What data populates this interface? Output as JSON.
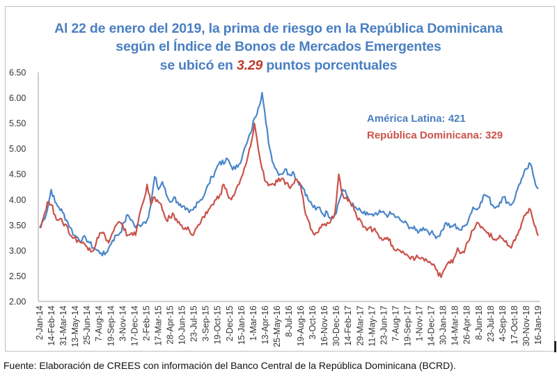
{
  "title": {
    "line1": "Al 22 de enero del 2019, la prima de riesgo en la República Dominicana",
    "line2": "según el Índice de Bonos de Mercados Emergentes",
    "line3_pre": "se ubicó en ",
    "line3_value": "3.29",
    "line3_post": " puntos porcentuales"
  },
  "legend": {
    "america_latina": "América Latina: 421",
    "republica_dominicana": "República Dominicana: 329"
  },
  "source": "Fuente: Elaboración de CREES con información del Banco Central de la República Dominicana (BCRD).",
  "colors": {
    "america_latina": "#4a86c8",
    "republica_dominicana": "#c9524a",
    "title": "#4a7fc1",
    "highlight": "#c0392b"
  },
  "chart_data": {
    "type": "line",
    "title": "Al 22 de enero del 2019, la prima de riesgo en la República Dominicana según el Índice de Bonos de Mercados Emergentes se ubicó en 3.29 puntos porcentuales",
    "xlabel": "",
    "ylabel": "",
    "ylim": [
      2.0,
      6.5
    ],
    "yticks": [
      "2.00",
      "2.50",
      "3.00",
      "3.50",
      "4.00",
      "4.50",
      "5.00",
      "5.50",
      "6.00",
      "6.50"
    ],
    "grid": false,
    "legend_position": "top-right (inline text labels)",
    "categories": [
      "2-Jan-14",
      "14-Feb-14",
      "31-Mar-14",
      "13-May-14",
      "25-Jun-14",
      "7-Aug-14",
      "19-Sep-14",
      "3-Nov-14",
      "17-Dec-14",
      "2-Feb-15",
      "17-Mar-15",
      "28-Apr-15",
      "10-Jun-15",
      "23-Jul-15",
      "3-Sep-15",
      "19-Oct-15",
      "2-Dec-15",
      "15-Jan-16",
      "1-Mar-16",
      "13-Apr-16",
      "25-May-16",
      "8-Jul-16",
      "19-Aug-16",
      "3-Oct-16",
      "16-Nov-16",
      "30-Dec-16",
      "14-Feb-17",
      "29-Mar-17",
      "11-May-17",
      "23-Jun-17",
      "7-Aug-17",
      "19-Sep-17",
      "1-Nov-17",
      "14-Dec-17",
      "30-Jan-18",
      "14-Mar-18",
      "26-Apr-18",
      "8-Jun-18",
      "23-Jul-18",
      "4-Sep-18",
      "17-Oct-18",
      "30-Nov-18",
      "16-Jan-19"
    ],
    "points_per_category": 3,
    "series": [
      {
        "name": "América Latina",
        "end_label": "421",
        "values": [
          3.45,
          3.6,
          3.8,
          4.2,
          3.95,
          3.85,
          3.75,
          3.6,
          3.45,
          3.3,
          3.25,
          3.2,
          3.25,
          3.15,
          3.05,
          3.0,
          2.95,
          2.92,
          3.05,
          3.2,
          3.3,
          3.35,
          3.55,
          3.7,
          3.6,
          3.45,
          3.5,
          3.55,
          3.6,
          3.9,
          4.45,
          4.2,
          4.35,
          4.1,
          3.95,
          4.05,
          3.95,
          3.85,
          3.8,
          3.75,
          3.8,
          3.95,
          4.0,
          4.1,
          4.3,
          4.45,
          4.6,
          4.75,
          4.7,
          4.8,
          4.65,
          4.6,
          4.7,
          4.9,
          5.1,
          5.3,
          5.6,
          5.8,
          6.1,
          5.5,
          5.0,
          4.7,
          4.55,
          4.5,
          4.6,
          4.5,
          4.55,
          4.4,
          4.3,
          4.2,
          4.0,
          3.9,
          3.8,
          3.85,
          3.7,
          3.75,
          3.65,
          3.7,
          3.95,
          4.2,
          4.1,
          3.95,
          3.85,
          3.8,
          3.75,
          3.7,
          3.72,
          3.68,
          3.7,
          3.75,
          3.72,
          3.7,
          3.72,
          3.65,
          3.6,
          3.55,
          3.5,
          3.45,
          3.4,
          3.38,
          3.45,
          3.4,
          3.35,
          3.3,
          3.28,
          3.4,
          3.55,
          3.45,
          3.5,
          3.45,
          3.4,
          3.5,
          3.65,
          3.85,
          3.8,
          3.95,
          4.1,
          4.05,
          3.9,
          3.85,
          3.95,
          4.05,
          3.95,
          3.9,
          4.05,
          4.3,
          4.45,
          4.6,
          4.7,
          4.4,
          4.21
        ]
      },
      {
        "name": "República Dominicana",
        "end_label": "329",
        "values": [
          3.45,
          3.65,
          3.95,
          3.9,
          3.7,
          3.6,
          3.55,
          3.5,
          3.3,
          3.25,
          3.2,
          3.15,
          3.1,
          3.05,
          3.0,
          3.25,
          3.35,
          3.3,
          3.15,
          3.35,
          3.5,
          3.55,
          3.4,
          3.3,
          3.35,
          3.3,
          3.7,
          3.95,
          4.3,
          3.9,
          4.05,
          3.95,
          3.8,
          3.6,
          3.65,
          3.7,
          3.55,
          3.5,
          3.45,
          3.4,
          3.3,
          3.45,
          3.55,
          3.65,
          3.8,
          3.9,
          4.0,
          4.1,
          4.3,
          4.1,
          4.0,
          4.15,
          4.3,
          4.5,
          4.75,
          5.05,
          5.5,
          5.0,
          4.6,
          4.35,
          4.3,
          4.3,
          4.35,
          4.4,
          4.3,
          4.25,
          4.3,
          4.4,
          4.3,
          3.85,
          3.6,
          3.4,
          3.35,
          3.45,
          3.5,
          3.55,
          3.6,
          3.75,
          4.5,
          4.1,
          4.05,
          3.95,
          3.8,
          3.6,
          3.55,
          3.45,
          3.45,
          3.4,
          3.35,
          3.25,
          3.25,
          3.2,
          3.1,
          3.0,
          3.0,
          2.95,
          2.9,
          2.88,
          2.85,
          2.85,
          2.85,
          2.8,
          2.75,
          2.7,
          2.5,
          2.55,
          2.7,
          2.75,
          2.85,
          3.05,
          2.95,
          3.05,
          3.2,
          3.4,
          3.55,
          3.45,
          3.4,
          3.35,
          3.25,
          3.2,
          3.3,
          3.2,
          3.1,
          3.05,
          3.2,
          3.4,
          3.6,
          3.75,
          3.8,
          3.5,
          3.29
        ]
      }
    ]
  }
}
